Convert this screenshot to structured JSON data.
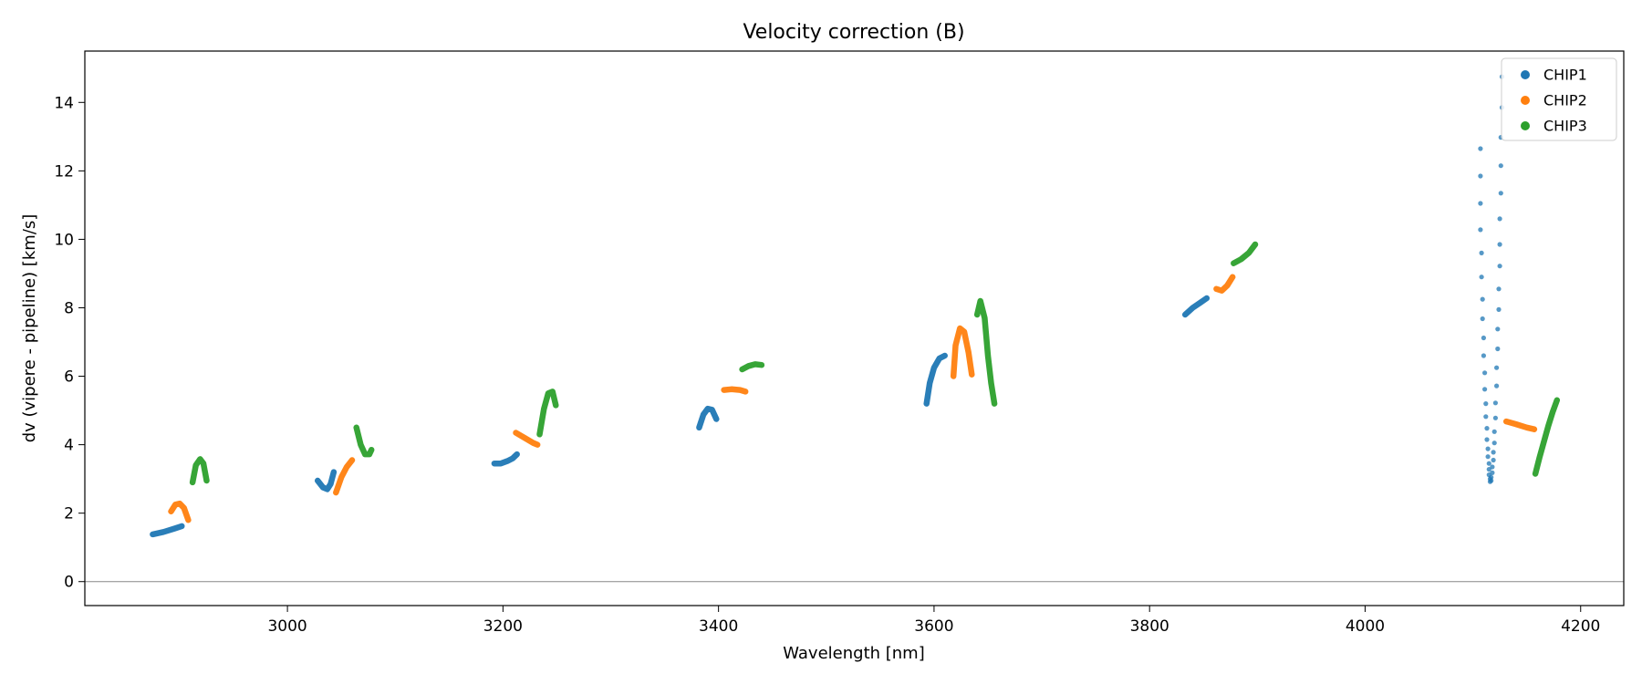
{
  "chart_data": {
    "type": "scatter",
    "title": "Velocity correction (B)",
    "xlabel": "Wavelength [nm]",
    "ylabel": "dv (vipere - pipeline) [km/s]",
    "xlim": [
      2812,
      4240
    ],
    "ylim": [
      -0.7,
      15.5
    ],
    "xticks": [
      3000,
      3200,
      3400,
      3600,
      3800,
      4000,
      4200
    ],
    "yticks": [
      0,
      2,
      4,
      6,
      8,
      10,
      12,
      14
    ],
    "hline": 0,
    "legend_position": "top-right",
    "series": [
      {
        "name": "CHIP1",
        "color": "#1f77b4",
        "segments": [
          {
            "type": "curve",
            "points": [
              [
                2875,
                1.38
              ],
              [
                2885,
                1.45
              ],
              [
                2895,
                1.55
              ],
              [
                2902,
                1.62
              ]
            ]
          },
          {
            "type": "curve",
            "points": [
              [
                3028,
                2.95
              ],
              [
                3033,
                2.75
              ],
              [
                3037,
                2.7
              ],
              [
                3040,
                2.85
              ],
              [
                3043,
                3.2
              ]
            ]
          },
          {
            "type": "curve",
            "points": [
              [
                3192,
                3.45
              ],
              [
                3198,
                3.45
              ],
              [
                3204,
                3.52
              ],
              [
                3209,
                3.6
              ],
              [
                3213,
                3.72
              ]
            ]
          },
          {
            "type": "curve",
            "points": [
              [
                3382,
                4.5
              ],
              [
                3386,
                4.88
              ],
              [
                3390,
                5.05
              ],
              [
                3394,
                5.02
              ],
              [
                3398,
                4.75
              ]
            ]
          },
          {
            "type": "curve",
            "points": [
              [
                3593,
                5.2
              ],
              [
                3596,
                5.8
              ],
              [
                3600,
                6.25
              ],
              [
                3605,
                6.52
              ],
              [
                3610,
                6.6
              ]
            ]
          },
          {
            "type": "curve",
            "points": [
              [
                3833,
                7.8
              ],
              [
                3840,
                8.0
              ],
              [
                3847,
                8.15
              ],
              [
                3853,
                8.28
              ]
            ]
          },
          {
            "type": "dots",
            "points": [
              [
                4107,
                12.65
              ],
              [
                4107,
                11.85
              ],
              [
                4107,
                11.05
              ],
              [
                4107,
                10.28
              ],
              [
                4108,
                9.6
              ],
              [
                4108,
                8.9
              ],
              [
                4109,
                8.25
              ],
              [
                4109,
                7.68
              ],
              [
                4110,
                7.12
              ],
              [
                4110,
                6.6
              ],
              [
                4111,
                6.1
              ],
              [
                4111,
                5.62
              ],
              [
                4112,
                5.2
              ],
              [
                4112,
                4.82
              ],
              [
                4113,
                4.48
              ],
              [
                4113,
                4.15
              ],
              [
                4114,
                3.88
              ],
              [
                4114,
                3.65
              ],
              [
                4115,
                3.45
              ],
              [
                4115,
                3.28
              ],
              [
                4115,
                3.12
              ],
              [
                4116,
                3.0
              ],
              [
                4116,
                2.92
              ],
              [
                4117,
                2.95
              ],
              [
                4117,
                3.05
              ],
              [
                4118,
                3.18
              ],
              [
                4118,
                3.35
              ],
              [
                4119,
                3.55
              ],
              [
                4119,
                3.78
              ],
              [
                4120,
                4.05
              ],
              [
                4120,
                4.38
              ],
              [
                4121,
                4.78
              ],
              [
                4121,
                5.22
              ],
              [
                4122,
                5.72
              ],
              [
                4122,
                6.25
              ],
              [
                4123,
                6.8
              ],
              [
                4123,
                7.38
              ],
              [
                4124,
                7.95
              ],
              [
                4124,
                8.55
              ],
              [
                4125,
                9.22
              ],
              [
                4125,
                9.85
              ],
              [
                4125,
                10.6
              ],
              [
                4126,
                11.35
              ],
              [
                4126,
                12.15
              ],
              [
                4126,
                12.98
              ],
              [
                4127,
                13.85
              ],
              [
                4127,
                14.75
              ]
            ]
          }
        ]
      },
      {
        "name": "CHIP2",
        "color": "#ff7f0e",
        "segments": [
          {
            "type": "curve",
            "points": [
              [
                2892,
                2.05
              ],
              [
                2896,
                2.25
              ],
              [
                2900,
                2.28
              ],
              [
                2904,
                2.15
              ],
              [
                2908,
                1.8
              ]
            ]
          },
          {
            "type": "curve",
            "points": [
              [
                3045,
                2.6
              ],
              [
                3050,
                3.05
              ],
              [
                3055,
                3.35
              ],
              [
                3060,
                3.55
              ]
            ]
          },
          {
            "type": "curve",
            "points": [
              [
                3212,
                4.35
              ],
              [
                3220,
                4.2
              ],
              [
                3228,
                4.05
              ],
              [
                3232,
                4.0
              ]
            ]
          },
          {
            "type": "curve",
            "points": [
              [
                3405,
                5.6
              ],
              [
                3412,
                5.62
              ],
              [
                3420,
                5.6
              ],
              [
                3425,
                5.55
              ]
            ]
          },
          {
            "type": "curve",
            "points": [
              [
                3618,
                6.0
              ],
              [
                3620,
                6.9
              ],
              [
                3624,
                7.4
              ],
              [
                3628,
                7.3
              ],
              [
                3632,
                6.7
              ],
              [
                3635,
                6.05
              ]
            ]
          },
          {
            "type": "curve",
            "points": [
              [
                3862,
                8.55
              ],
              [
                3867,
                8.5
              ],
              [
                3872,
                8.65
              ],
              [
                3877,
                8.9
              ]
            ]
          },
          {
            "type": "curve",
            "points": [
              [
                4131,
                4.68
              ],
              [
                4140,
                4.6
              ],
              [
                4150,
                4.5
              ],
              [
                4157,
                4.45
              ]
            ]
          }
        ]
      },
      {
        "name": "CHIP3",
        "color": "#2ca02c",
        "segments": [
          {
            "type": "curve",
            "points": [
              [
                2912,
                2.9
              ],
              [
                2915,
                3.4
              ],
              [
                2919,
                3.58
              ],
              [
                2922,
                3.45
              ],
              [
                2925,
                2.95
              ]
            ]
          },
          {
            "type": "curve",
            "points": [
              [
                3064,
                4.5
              ],
              [
                3068,
                4.0
              ],
              [
                3072,
                3.72
              ],
              [
                3076,
                3.72
              ],
              [
                3078,
                3.85
              ]
            ]
          },
          {
            "type": "curve",
            "points": [
              [
                3234,
                4.3
              ],
              [
                3238,
                5.05
              ],
              [
                3242,
                5.5
              ],
              [
                3246,
                5.55
              ],
              [
                3249,
                5.15
              ]
            ]
          },
          {
            "type": "curve",
            "points": [
              [
                3422,
                6.2
              ],
              [
                3428,
                6.3
              ],
              [
                3434,
                6.35
              ],
              [
                3440,
                6.33
              ]
            ]
          },
          {
            "type": "curve",
            "points": [
              [
                3640,
                7.8
              ],
              [
                3643,
                8.2
              ],
              [
                3647,
                7.7
              ],
              [
                3650,
                6.6
              ],
              [
                3653,
                5.8
              ],
              [
                3656,
                5.2
              ]
            ]
          },
          {
            "type": "curve",
            "points": [
              [
                3878,
                9.3
              ],
              [
                3885,
                9.42
              ],
              [
                3892,
                9.6
              ],
              [
                3898,
                9.85
              ]
            ]
          },
          {
            "type": "curve",
            "points": [
              [
                4158,
                3.15
              ],
              [
                4162,
                3.65
              ],
              [
                4166,
                4.1
              ],
              [
                4170,
                4.55
              ],
              [
                4174,
                4.95
              ],
              [
                4178,
                5.3
              ]
            ]
          }
        ]
      }
    ]
  }
}
